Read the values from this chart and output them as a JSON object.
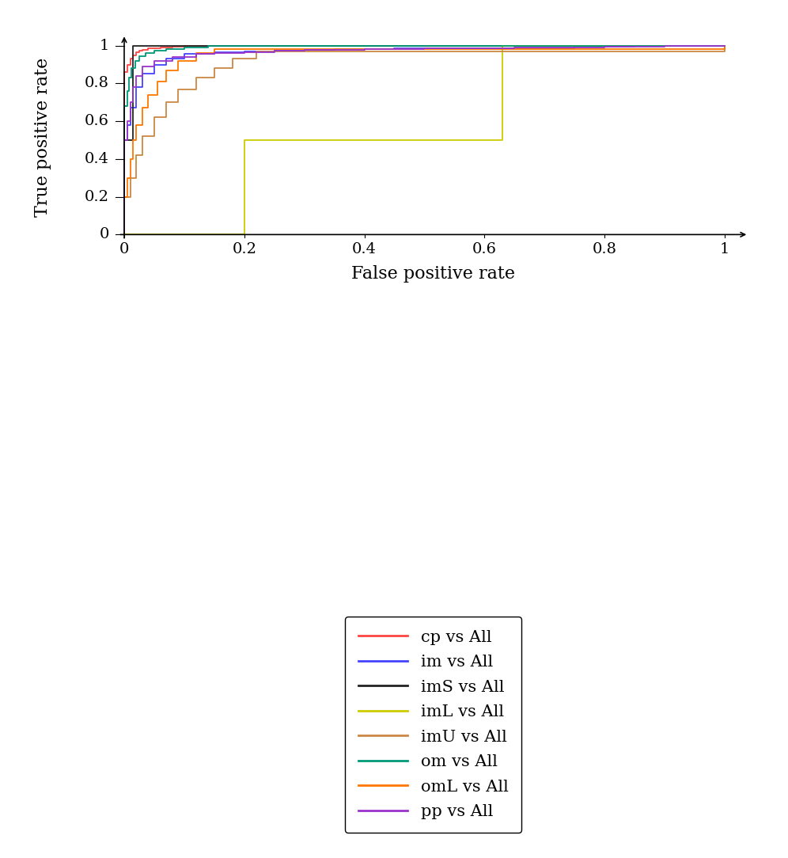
{
  "title": "",
  "xlabel": "False positive rate",
  "ylabel": "True positive rate",
  "xlim": [
    -0.02,
    1.05
  ],
  "ylim": [
    -0.02,
    1.05
  ],
  "background_color": "#ffffff",
  "curves": {
    "cp": {
      "color": "#ff4444",
      "label": "cp vs All",
      "fpr": [
        0.0,
        0.0,
        0.005,
        0.01,
        0.015,
        0.02,
        0.025,
        0.03,
        0.04,
        0.05,
        0.06,
        0.08,
        0.1,
        0.12,
        1.0
      ],
      "tpr": [
        0.0,
        0.86,
        0.9,
        0.93,
        0.95,
        0.965,
        0.972,
        0.978,
        0.984,
        0.988,
        0.992,
        0.996,
        0.998,
        1.0,
        1.0
      ]
    },
    "im": {
      "color": "#4444ff",
      "label": "im vs All",
      "fpr": [
        0.0,
        0.0,
        0.005,
        0.01,
        0.02,
        0.03,
        0.05,
        0.07,
        0.1,
        0.15,
        0.2,
        0.25,
        0.3,
        0.35,
        0.4,
        0.45,
        0.65,
        0.75,
        0.85,
        0.95,
        1.0
      ],
      "tpr": [
        0.0,
        0.5,
        0.58,
        0.67,
        0.78,
        0.85,
        0.9,
        0.93,
        0.955,
        0.965,
        0.97,
        0.974,
        0.977,
        0.98,
        0.983,
        0.985,
        0.988,
        0.993,
        0.997,
        1.0,
        1.0
      ]
    },
    "imS": {
      "color": "#222222",
      "label": "imS vs All",
      "fpr": [
        0.0,
        0.0,
        0.015,
        0.015,
        0.65,
        0.65,
        1.0
      ],
      "tpr": [
        0.0,
        0.5,
        0.5,
        1.0,
        1.0,
        1.0,
        1.0
      ]
    },
    "imL": {
      "color": "#cccc00",
      "label": "imL vs All",
      "fpr": [
        0.0,
        0.0,
        0.2,
        0.2,
        0.63,
        0.63,
        1.0
      ],
      "tpr": [
        0.0,
        0.0,
        0.0,
        0.5,
        0.5,
        1.0,
        1.0
      ]
    },
    "imU": {
      "color": "#cc8844",
      "label": "imU vs All",
      "fpr": [
        0.0,
        0.0,
        0.01,
        0.02,
        0.03,
        0.05,
        0.07,
        0.09,
        0.12,
        0.15,
        0.18,
        0.22,
        1.0
      ],
      "tpr": [
        0.0,
        0.2,
        0.3,
        0.42,
        0.52,
        0.62,
        0.7,
        0.77,
        0.83,
        0.88,
        0.93,
        0.97,
        1.0
      ]
    },
    "om": {
      "color": "#009977",
      "label": "om vs All",
      "fpr": [
        0.0,
        0.0,
        0.005,
        0.008,
        0.012,
        0.018,
        0.025,
        0.035,
        0.05,
        0.07,
        0.1,
        0.14,
        1.0
      ],
      "tpr": [
        0.0,
        0.68,
        0.76,
        0.83,
        0.88,
        0.92,
        0.945,
        0.96,
        0.972,
        0.982,
        0.99,
        1.0,
        1.0
      ]
    },
    "omL": {
      "color": "#ff7700",
      "label": "omL vs All",
      "fpr": [
        0.0,
        0.0,
        0.005,
        0.01,
        0.015,
        0.02,
        0.03,
        0.04,
        0.055,
        0.07,
        0.09,
        0.12,
        0.15,
        1.0
      ],
      "tpr": [
        0.0,
        0.2,
        0.3,
        0.4,
        0.5,
        0.58,
        0.67,
        0.74,
        0.81,
        0.87,
        0.92,
        0.96,
        0.98,
        1.0
      ]
    },
    "pp": {
      "color": "#9933cc",
      "label": "pp vs All",
      "fpr": [
        0.0,
        0.0,
        0.005,
        0.01,
        0.015,
        0.02,
        0.03,
        0.05,
        0.08,
        0.12,
        0.15,
        0.2,
        0.25,
        0.3,
        0.35,
        0.4,
        0.5,
        0.65,
        0.8,
        0.9,
        1.0
      ],
      "tpr": [
        0.0,
        0.5,
        0.6,
        0.7,
        0.78,
        0.84,
        0.89,
        0.92,
        0.94,
        0.955,
        0.962,
        0.967,
        0.972,
        0.976,
        0.979,
        0.982,
        0.986,
        0.99,
        0.995,
        0.998,
        1.0
      ]
    }
  },
  "legend_order": [
    "cp",
    "im",
    "imS",
    "imL",
    "imU",
    "om",
    "omL",
    "pp"
  ],
  "xticks": [
    0,
    0.2,
    0.4,
    0.6,
    0.8,
    1
  ],
  "yticks": [
    0,
    0.2,
    0.4,
    0.6,
    0.8,
    1
  ],
  "tick_fontsize": 14,
  "label_fontsize": 16,
  "legend_fontsize": 15,
  "linewidth": 1.3
}
